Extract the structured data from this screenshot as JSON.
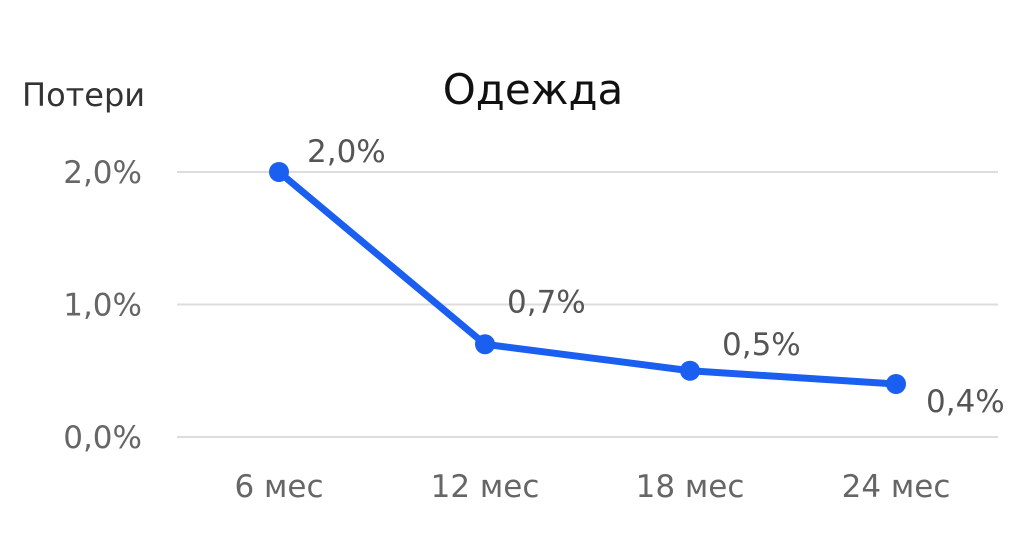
{
  "chart_data": {
    "type": "line",
    "title": "Одежда",
    "ylabel": "Потери",
    "xlabel": "",
    "categories": [
      "6 мес",
      "12 мес",
      "18 мес",
      "24 мес"
    ],
    "values": [
      2.0,
      0.7,
      0.5,
      0.4
    ],
    "data_labels": [
      "2,0%",
      "0,7%",
      "0,5%",
      "0,4%"
    ],
    "y_ticks": [
      0,
      1,
      2
    ],
    "y_tick_labels": [
      "0,0%",
      "1,0%",
      "2,0%"
    ],
    "ylim": [
      0,
      2
    ],
    "grid": true,
    "legend": "none",
    "line_color": "#1a5ff0"
  }
}
